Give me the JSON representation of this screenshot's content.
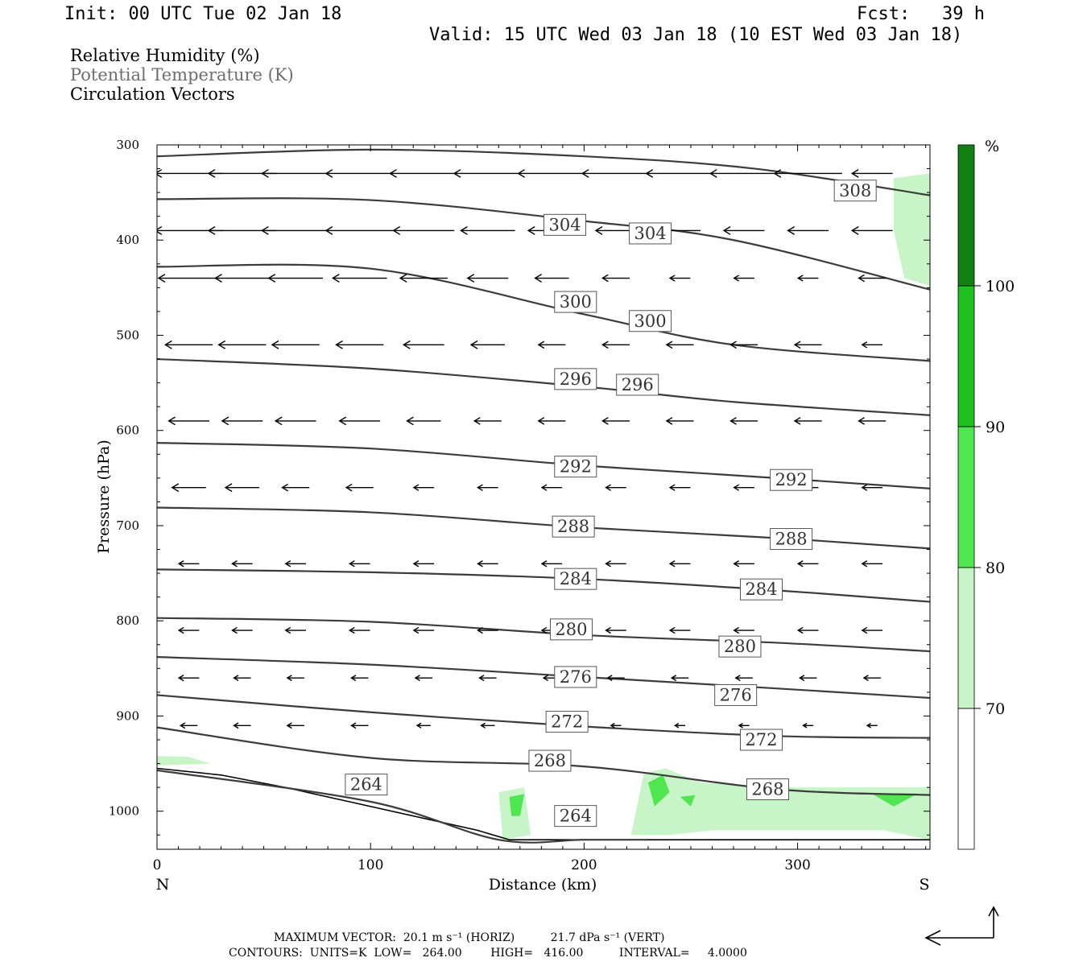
{
  "header": {
    "init": "Init: 00 UTC Tue 02 Jan 18",
    "fcst": "Fcst:   39 h",
    "valid": "Valid: 15 UTC Wed 03 Jan 18 (10 EST Wed 03 Jan 18)"
  },
  "legend_text": {
    "rh": "Relative Humidity (%)",
    "theta": "Potential Temperature (K)",
    "vectors": "Circulation Vectors"
  },
  "chart_data": {
    "type": "cross-section",
    "xlabel": "Distance (km)",
    "ylabel": "Pressure (hPa)",
    "xlim": [
      0,
      362
    ],
    "ylim": [
      1040,
      300
    ],
    "x_ticks": [
      0,
      100,
      200,
      300
    ],
    "y_ticks": [
      300,
      400,
      500,
      600,
      700,
      800,
      900,
      1000
    ],
    "x_end_labels": {
      "left": "N",
      "right": "S"
    },
    "colorbar": {
      "unit": "%",
      "levels": [
        70,
        80,
        90,
        100
      ],
      "colors": [
        "#ffffff",
        "#c8f5c8",
        "#50e650",
        "#20c020",
        "#108010"
      ]
    },
    "isentropes": [
      {
        "label": "308",
        "points": [
          [
            0,
            312
          ],
          [
            100,
            305
          ],
          [
            200,
            312
          ],
          [
            280,
            325
          ],
          [
            362,
            353
          ]
        ]
      },
      {
        "label": "304",
        "points": [
          [
            0,
            357
          ],
          [
            100,
            358
          ],
          [
            200,
            380
          ],
          [
            270,
            400
          ],
          [
            362,
            452
          ]
        ]
      },
      {
        "label": "300",
        "points": [
          [
            0,
            428
          ],
          [
            100,
            430
          ],
          [
            200,
            478
          ],
          [
            270,
            510
          ],
          [
            362,
            527
          ]
        ]
      },
      {
        "label": "296",
        "points": [
          [
            0,
            525
          ],
          [
            100,
            535
          ],
          [
            200,
            554
          ],
          [
            270,
            570
          ],
          [
            362,
            584
          ]
        ]
      },
      {
        "label": "292",
        "points": [
          [
            0,
            613
          ],
          [
            100,
            619
          ],
          [
            200,
            637
          ],
          [
            290,
            650
          ],
          [
            362,
            661
          ]
        ]
      },
      {
        "label": "288",
        "points": [
          [
            0,
            681
          ],
          [
            100,
            686
          ],
          [
            200,
            702
          ],
          [
            290,
            713
          ],
          [
            362,
            724
          ]
        ]
      },
      {
        "label": "284",
        "points": [
          [
            0,
            746
          ],
          [
            100,
            749
          ],
          [
            200,
            756
          ],
          [
            290,
            768
          ],
          [
            362,
            780
          ]
        ]
      },
      {
        "label": "280",
        "points": [
          [
            0,
            797
          ],
          [
            100,
            801
          ],
          [
            200,
            815
          ],
          [
            290,
            823
          ],
          [
            362,
            832
          ]
        ]
      },
      {
        "label": "276",
        "points": [
          [
            0,
            838
          ],
          [
            100,
            846
          ],
          [
            200,
            859
          ],
          [
            290,
            871
          ],
          [
            362,
            881
          ]
        ]
      },
      {
        "label": "272",
        "points": [
          [
            0,
            878
          ],
          [
            100,
            896
          ],
          [
            200,
            911
          ],
          [
            290,
            921
          ],
          [
            362,
            923
          ]
        ]
      },
      {
        "label": "268",
        "points": [
          [
            0,
            912
          ],
          [
            100,
            944
          ],
          [
            200,
            953
          ],
          [
            290,
            977
          ],
          [
            362,
            983
          ]
        ]
      },
      {
        "label": "264",
        "points": [
          [
            0,
            957
          ],
          [
            100,
            990
          ],
          [
            160,
            1030
          ],
          [
            200,
            1030
          ],
          [
            230,
            1030
          ]
        ]
      }
    ],
    "contour_labels": [
      {
        "text": "308",
        "x": 327,
        "p": 348
      },
      {
        "text": "304",
        "x": 191,
        "p": 384
      },
      {
        "text": "304",
        "x": 231,
        "p": 393
      },
      {
        "text": "300",
        "x": 196,
        "p": 465
      },
      {
        "text": "300",
        "x": 231,
        "p": 485
      },
      {
        "text": "296",
        "x": 196,
        "p": 546
      },
      {
        "text": "296",
        "x": 225,
        "p": 552
      },
      {
        "text": "292",
        "x": 196,
        "p": 638
      },
      {
        "text": "292",
        "x": 297,
        "p": 652
      },
      {
        "text": "288",
        "x": 195,
        "p": 701
      },
      {
        "text": "288",
        "x": 297,
        "p": 714
      },
      {
        "text": "284",
        "x": 196,
        "p": 756
      },
      {
        "text": "284",
        "x": 283,
        "p": 767
      },
      {
        "text": "280",
        "x": 194,
        "p": 809
      },
      {
        "text": "280",
        "x": 273,
        "p": 827
      },
      {
        "text": "276",
        "x": 196,
        "p": 859
      },
      {
        "text": "276",
        "x": 271,
        "p": 878
      },
      {
        "text": "272",
        "x": 192,
        "p": 906
      },
      {
        "text": "272",
        "x": 283,
        "p": 925
      },
      {
        "text": "268",
        "x": 184,
        "p": 947
      },
      {
        "text": "268",
        "x": 286,
        "p": 977
      },
      {
        "text": "264",
        "x": 98,
        "p": 972
      },
      {
        "text": "264",
        "x": 196,
        "p": 1005
      }
    ],
    "terrain": [
      [
        0,
        955
      ],
      [
        30,
        962
      ],
      [
        60,
        975
      ],
      [
        90,
        990
      ],
      [
        120,
        1005
      ],
      [
        150,
        1020
      ],
      [
        165,
        1030
      ],
      [
        362,
        1030
      ]
    ],
    "rh_regions": [
      {
        "level": 70,
        "points": [
          [
            345,
            335
          ],
          [
            362,
            330
          ],
          [
            362,
            448
          ],
          [
            350,
            440
          ],
          [
            345,
            390
          ]
        ]
      },
      {
        "level": 70,
        "points": [
          [
            0,
            942
          ],
          [
            15,
            943
          ],
          [
            25,
            950
          ],
          [
            0,
            952
          ]
        ]
      },
      {
        "level": 70,
        "points": [
          [
            160,
            980
          ],
          [
            172,
            975
          ],
          [
            175,
            1025
          ],
          [
            162,
            1030
          ]
        ]
      },
      {
        "level": 70,
        "points": [
          [
            222,
            1025
          ],
          [
            228,
            960
          ],
          [
            238,
            955
          ],
          [
            255,
            970
          ],
          [
            300,
            975
          ],
          [
            362,
            975
          ],
          [
            362,
            1030
          ],
          [
            340,
            1020
          ],
          [
            300,
            1020
          ],
          [
            260,
            1020
          ],
          [
            240,
            1025
          ]
        ]
      },
      {
        "level": 80,
        "points": [
          [
            165,
            985
          ],
          [
            172,
            982
          ],
          [
            170,
            1005
          ],
          [
            166,
            1005
          ]
        ]
      },
      {
        "level": 80,
        "points": [
          [
            230,
            970
          ],
          [
            237,
            962
          ],
          [
            240,
            980
          ],
          [
            233,
            995
          ]
        ]
      },
      {
        "level": 80,
        "points": [
          [
            245,
            985
          ],
          [
            252,
            983
          ],
          [
            250,
            995
          ]
        ]
      },
      {
        "level": 80,
        "points": [
          [
            335,
            982
          ],
          [
            355,
            983
          ],
          [
            345,
            995
          ]
        ]
      }
    ],
    "vectors": {
      "x_positions": [
        15,
        40,
        65,
        95,
        125,
        155,
        185,
        215,
        245,
        275,
        305,
        335
      ],
      "rows": [
        {
          "p": 330,
          "u": [
            -20,
            -20,
            -20,
            -20,
            -20,
            -20,
            -20,
            -20,
            -20,
            -20,
            -20,
            -12
          ]
        },
        {
          "p": 390,
          "u": [
            -20,
            -20,
            -20,
            -20,
            -18,
            -16,
            -14,
            -12,
            -12,
            -12,
            -12,
            -12
          ]
        },
        {
          "p": 440,
          "u": [
            -18,
            -16,
            -16,
            -16,
            -14,
            -12,
            -10,
            -8,
            -6,
            -6,
            -6,
            -8
          ]
        },
        {
          "p": 510,
          "u": [
            -14,
            -14,
            -14,
            -14,
            -12,
            -10,
            -8,
            -8,
            -8,
            -8,
            -8,
            -6
          ]
        },
        {
          "p": 590,
          "u": [
            -12,
            -12,
            -12,
            -12,
            -10,
            -8,
            -8,
            -8,
            -8,
            -8,
            -8,
            -8
          ]
        },
        {
          "p": 660,
          "u": [
            -10,
            -10,
            -8,
            -8,
            -6,
            -6,
            -6,
            -6,
            -6,
            -6,
            -6,
            -6
          ]
        },
        {
          "p": 740,
          "u": [
            -6,
            -6,
            -6,
            -6,
            -6,
            -6,
            -6,
            -6,
            -6,
            -6,
            -6,
            -6
          ]
        },
        {
          "p": 810,
          "u": [
            -6,
            -6,
            -6,
            -6,
            -6,
            -6,
            -6,
            -6,
            -6,
            -6,
            -6,
            -6
          ]
        },
        {
          "p": 860,
          "u": [
            -6,
            -5,
            -5,
            -5,
            -5,
            -5,
            -5,
            -5,
            -5,
            -5,
            -5,
            -5
          ]
        },
        {
          "p": 910,
          "u": [
            -5,
            -5,
            -5,
            -5,
            -4,
            -4,
            -3,
            -3,
            -3,
            -3,
            -3,
            -3
          ]
        }
      ]
    }
  },
  "footer": {
    "max_vector": "MAXIMUM VECTOR:  20.1 m s⁻¹ (HORIZ)          21.7 dPa s⁻¹ (VERT)",
    "contours": "CONTOURS:  UNITS=K  LOW=   264.00        HIGH=   416.00          INTERVAL=     4.0000"
  }
}
